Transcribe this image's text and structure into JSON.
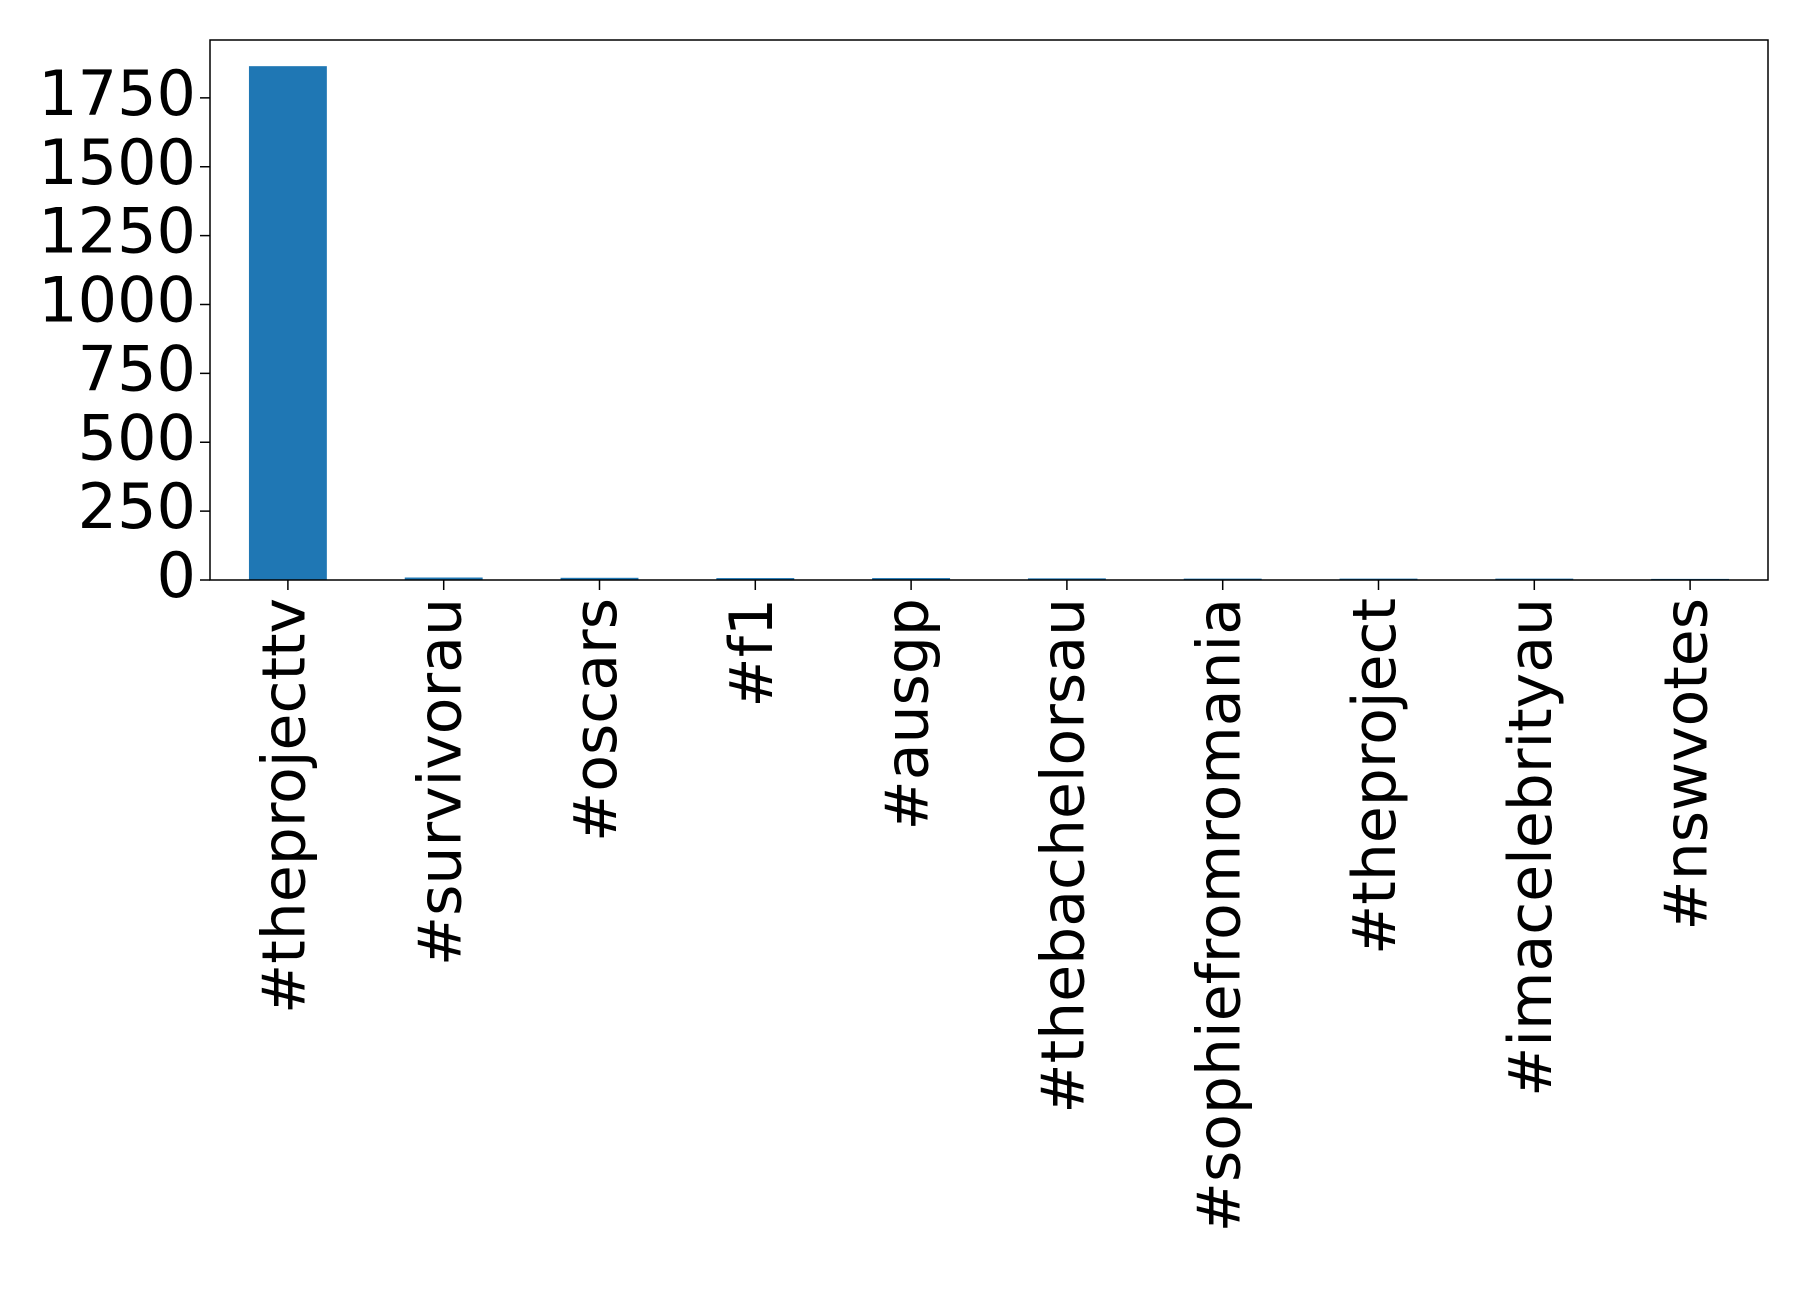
{
  "chart_data": {
    "type": "bar",
    "title": "",
    "xlabel": "",
    "ylabel": "",
    "categories": [
      "#theprojecttv",
      "#survivorau",
      "#oscars",
      "#f1",
      "#ausgp",
      "#thebachelorsau",
      "#sophiefromromania",
      "#theproject",
      "#imacelebrityau",
      "#nswvotes"
    ],
    "values": [
      1865,
      9,
      8,
      7,
      7,
      6,
      5,
      5,
      5,
      4
    ],
    "ylim": [
      0,
      1960
    ],
    "yticks": [
      0,
      250,
      500,
      750,
      1000,
      1250,
      1500,
      1750
    ],
    "grid": false,
    "legend": "none",
    "bar_color": "#1f77b4"
  }
}
